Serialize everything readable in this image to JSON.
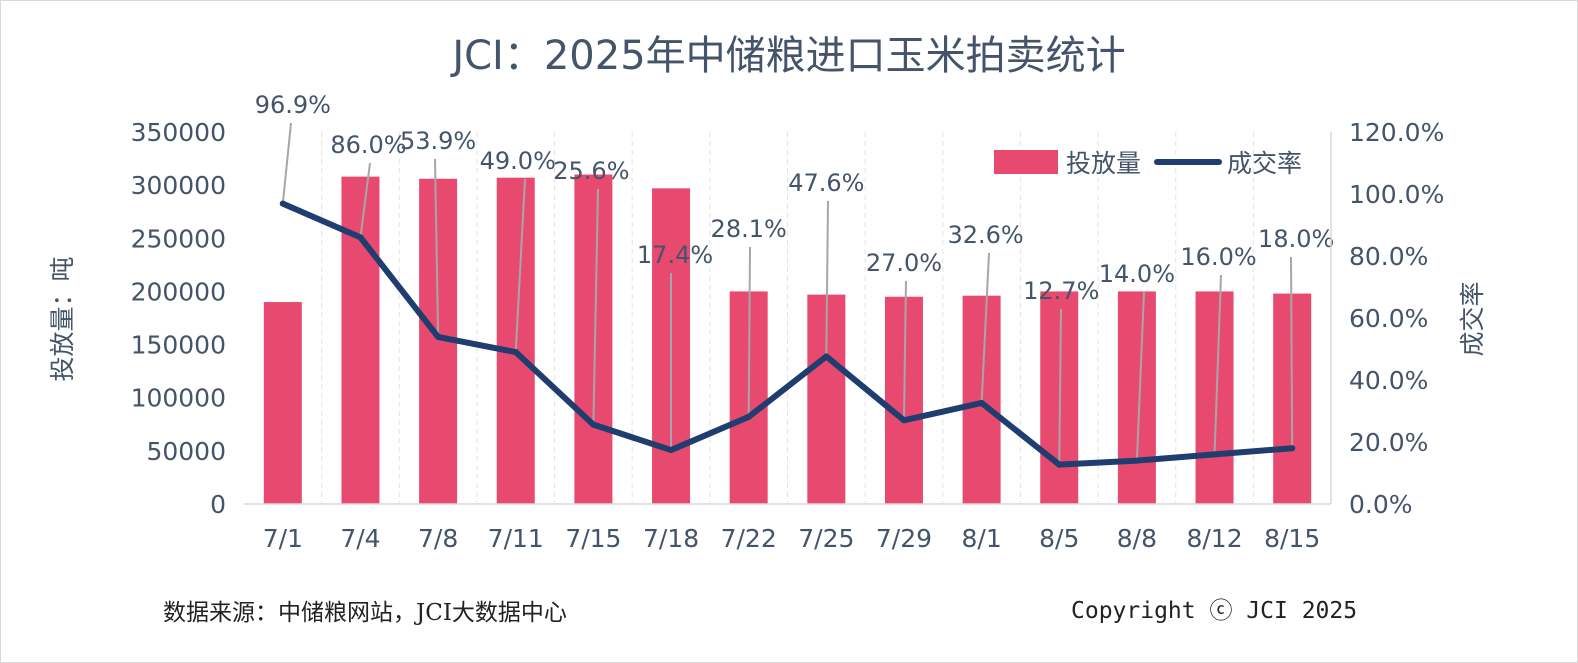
{
  "title": "JCI：2025年中储粮进口玉米拍卖统计",
  "source_note": "数据来源：中储粮网站，JCI大数据中心",
  "copyright": "Copyright ⓒ JCI 2025",
  "colors": {
    "bar": "#e84a6f",
    "line": "#1f3d6e",
    "text": "#44546a",
    "leader": "#a6a6a6"
  },
  "chart_data": {
    "type": "bar",
    "categories": [
      "7/1",
      "7/4",
      "7/8",
      "7/11",
      "7/15",
      "7/18",
      "7/22",
      "7/25",
      "7/29",
      "8/1",
      "8/5",
      "8/8",
      "8/12",
      "8/15"
    ],
    "series": [
      {
        "name": "投放量",
        "type": "bar",
        "axis": "left",
        "values": [
          190000,
          308000,
          306000,
          307000,
          310000,
          297000,
          200000,
          197000,
          195000,
          196000,
          200000,
          200000,
          200000,
          198000
        ]
      },
      {
        "name": "成交率",
        "type": "line",
        "axis": "right",
        "values": [
          96.9,
          86.0,
          53.9,
          49.0,
          25.6,
          17.4,
          28.1,
          47.6,
          27.0,
          32.6,
          12.7,
          14.0,
          16.0,
          18.0
        ],
        "labels": [
          "96.9%",
          "86.0%",
          "53.9%",
          "49.0%",
          "25.6%",
          "17.4%",
          "28.1%",
          "47.6%",
          "27.0%",
          "32.6%",
          "12.7%",
          "14.0%",
          "16.0%",
          "18.0%"
        ]
      }
    ],
    "ylabel": "投放量：吨",
    "y2label": "成交率",
    "ylim": [
      0,
      350000
    ],
    "y2lim": [
      0,
      120
    ],
    "yticks": [
      "0",
      "50000",
      "100000",
      "150000",
      "200000",
      "250000",
      "300000",
      "350000"
    ],
    "y2ticks": [
      "0.0%",
      "20.0%",
      "40.0%",
      "60.0%",
      "80.0%",
      "100.0%",
      "120.0%"
    ],
    "legend": [
      "投放量",
      "成交率"
    ],
    "legend_position": "top-right",
    "grid": "vertical-dashed"
  }
}
